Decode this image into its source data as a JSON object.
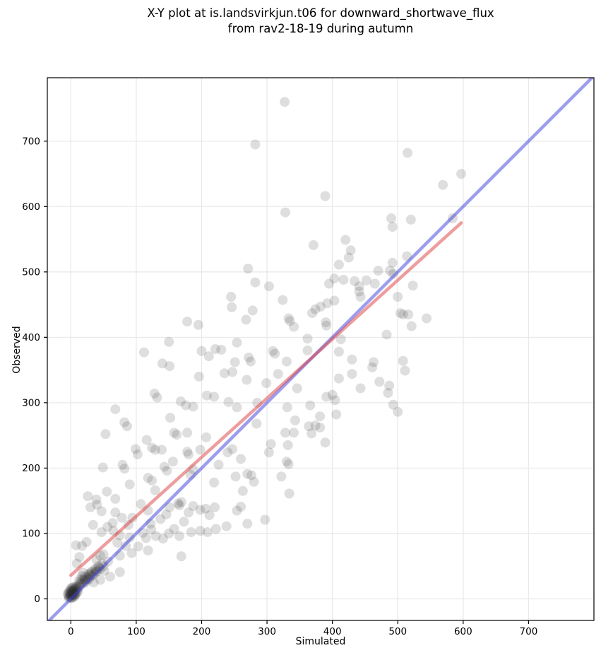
{
  "title": {
    "line1": "X-Y plot at is.landsvirkjun.t06 for downward_shortwave_flux",
    "line2": "from rav2-18-19 during autumn"
  },
  "chart_data": {
    "type": "scatter",
    "title": "X-Y plot at is.landsvirkjun.t06 for downward_shortwave_flux from rav2-18-19 during autumn",
    "xlabel": "Simulated",
    "ylabel": "Observed",
    "xlim": [
      -36,
      800
    ],
    "ylim": [
      -33,
      797
    ],
    "xticks": [
      0,
      100,
      200,
      300,
      400,
      500,
      600,
      700
    ],
    "yticks": [
      0,
      100,
      200,
      300,
      400,
      500,
      600,
      700
    ],
    "grid": true,
    "grid_color": "#e9e9e9",
    "marker": {
      "color": "#2a2a2a",
      "opacity": 0.155,
      "radius_px": 7
    },
    "lines": [
      {
        "name": "one-to-one-line",
        "color": "#3c3cdc",
        "opacity": 0.5,
        "width": 4.5,
        "x1": -33,
        "y1": -33,
        "x2": 797,
        "y2": 797
      },
      {
        "name": "regression-line",
        "color": "#dc3c3c",
        "opacity": 0.5,
        "width": 4.5,
        "x1": 0,
        "y1": 36,
        "x2": 597,
        "y2": 575
      }
    ],
    "points": [
      [
        327,
        760
      ],
      [
        282,
        695
      ],
      [
        515,
        682
      ],
      [
        597,
        650
      ],
      [
        569,
        633
      ],
      [
        389,
        616
      ],
      [
        328,
        591
      ],
      [
        584,
        582
      ],
      [
        490,
        582
      ],
      [
        520,
        580
      ],
      [
        492,
        569
      ],
      [
        420,
        549
      ],
      [
        371,
        541
      ],
      [
        428,
        533
      ],
      [
        425,
        522
      ],
      [
        514,
        524
      ],
      [
        410,
        511
      ],
      [
        492,
        514
      ],
      [
        271,
        505
      ],
      [
        488,
        502
      ],
      [
        493,
        497
      ],
      [
        470,
        502
      ],
      [
        282,
        484
      ],
      [
        452,
        487
      ],
      [
        465,
        482
      ],
      [
        403,
        490
      ],
      [
        417,
        488
      ],
      [
        395,
        482
      ],
      [
        434,
        486
      ],
      [
        441,
        478
      ],
      [
        523,
        479
      ],
      [
        303,
        478
      ],
      [
        324,
        457
      ],
      [
        374,
        443
      ],
      [
        382,
        447
      ],
      [
        392,
        452
      ],
      [
        403,
        456
      ],
      [
        443,
        462
      ],
      [
        441,
        470
      ],
      [
        500,
        462
      ],
      [
        504,
        437
      ],
      [
        516,
        435
      ],
      [
        508,
        435
      ],
      [
        544,
        429
      ],
      [
        521,
        417
      ],
      [
        483,
        404
      ],
      [
        413,
        397
      ],
      [
        362,
        398
      ],
      [
        362,
        380
      ],
      [
        333,
        429
      ],
      [
        335,
        425
      ],
      [
        341,
        416
      ],
      [
        390,
        423
      ],
      [
        391,
        418
      ],
      [
        369,
        437
      ],
      [
        309,
        379
      ],
      [
        312,
        375
      ],
      [
        330,
        363
      ],
      [
        410,
        378
      ],
      [
        430,
        366
      ],
      [
        463,
        362
      ],
      [
        461,
        354
      ],
      [
        508,
        364
      ],
      [
        511,
        349
      ],
      [
        430,
        344
      ],
      [
        410,
        337
      ],
      [
        472,
        332
      ],
      [
        443,
        322
      ],
      [
        487,
        326
      ],
      [
        485,
        315
      ],
      [
        317,
        344
      ],
      [
        299,
        330
      ],
      [
        346,
        322
      ],
      [
        391,
        309
      ],
      [
        400,
        312
      ],
      [
        404,
        304
      ],
      [
        331,
        293
      ],
      [
        343,
        273
      ],
      [
        366,
        296
      ],
      [
        381,
        279
      ],
      [
        406,
        282
      ],
      [
        493,
        297
      ],
      [
        500,
        286
      ],
      [
        328,
        254
      ],
      [
        341,
        254
      ],
      [
        364,
        264
      ],
      [
        374,
        265
      ],
      [
        368,
        253
      ],
      [
        381,
        262
      ],
      [
        306,
        237
      ],
      [
        303,
        224
      ],
      [
        332,
        235
      ],
      [
        389,
        239
      ],
      [
        330,
        210
      ],
      [
        333,
        206
      ],
      [
        322,
        187
      ],
      [
        334,
        161
      ],
      [
        297,
        121
      ],
      [
        178,
        424
      ],
      [
        195,
        419
      ],
      [
        245,
        462
      ],
      [
        246,
        446
      ],
      [
        278,
        441
      ],
      [
        268,
        427
      ],
      [
        112,
        377
      ],
      [
        150,
        393
      ],
      [
        200,
        379
      ],
      [
        211,
        371
      ],
      [
        221,
        382
      ],
      [
        230,
        381
      ],
      [
        254,
        392
      ],
      [
        251,
        362
      ],
      [
        272,
        369
      ],
      [
        275,
        363
      ],
      [
        140,
        360
      ],
      [
        151,
        356
      ],
      [
        235,
        345
      ],
      [
        247,
        347
      ],
      [
        196,
        340
      ],
      [
        269,
        335
      ],
      [
        128,
        314
      ],
      [
        132,
        308
      ],
      [
        168,
        302
      ],
      [
        176,
        296
      ],
      [
        187,
        294
      ],
      [
        208,
        311
      ],
      [
        219,
        309
      ],
      [
        241,
        301
      ],
      [
        254,
        293
      ],
      [
        284,
        268
      ],
      [
        285,
        300
      ],
      [
        68,
        290
      ],
      [
        82,
        270
      ],
      [
        86,
        264
      ],
      [
        53,
        252
      ],
      [
        152,
        277
      ],
      [
        158,
        254
      ],
      [
        162,
        251
      ],
      [
        178,
        254
      ],
      [
        207,
        247
      ],
      [
        116,
        243
      ],
      [
        99,
        229
      ],
      [
        102,
        221
      ],
      [
        124,
        231
      ],
      [
        129,
        228
      ],
      [
        139,
        228
      ],
      [
        178,
        225
      ],
      [
        180,
        221
      ],
      [
        198,
        228
      ],
      [
        240,
        224
      ],
      [
        247,
        229
      ],
      [
        260,
        214
      ],
      [
        270,
        191
      ],
      [
        156,
        210
      ],
      [
        143,
        202
      ],
      [
        147,
        196
      ],
      [
        187,
        198
      ],
      [
        183,
        190
      ],
      [
        49,
        201
      ],
      [
        79,
        205
      ],
      [
        82,
        199
      ],
      [
        118,
        185
      ],
      [
        124,
        181
      ],
      [
        90,
        175
      ],
      [
        55,
        164
      ],
      [
        26,
        157
      ],
      [
        39,
        152
      ],
      [
        68,
        153
      ],
      [
        129,
        166
      ],
      [
        219,
        178
      ],
      [
        226,
        205
      ],
      [
        252,
        187
      ],
      [
        263,
        165
      ],
      [
        276,
        189
      ],
      [
        280,
        179
      ],
      [
        30,
        140
      ],
      [
        40,
        144
      ],
      [
        47,
        134
      ],
      [
        34,
        113
      ],
      [
        56,
        110
      ],
      [
        65,
        104
      ],
      [
        24,
        87
      ],
      [
        17,
        81
      ],
      [
        9,
        54
      ],
      [
        13,
        64
      ],
      [
        8,
        82
      ],
      [
        47,
        102
      ],
      [
        50,
        68
      ],
      [
        45,
        66
      ],
      [
        39,
        60
      ],
      [
        64,
        116
      ],
      [
        68,
        132
      ],
      [
        78,
        124
      ],
      [
        94,
        124
      ],
      [
        88,
        113
      ],
      [
        75,
        97
      ],
      [
        90,
        94
      ],
      [
        71,
        86
      ],
      [
        84,
        81
      ],
      [
        103,
        80
      ],
      [
        115,
        93
      ],
      [
        110,
        101
      ],
      [
        123,
        106
      ],
      [
        122,
        115
      ],
      [
        118,
        135
      ],
      [
        107,
        145
      ],
      [
        137,
        122
      ],
      [
        146,
        129
      ],
      [
        151,
        140
      ],
      [
        164,
        146
      ],
      [
        169,
        148
      ],
      [
        166,
        143
      ],
      [
        180,
        132
      ],
      [
        187,
        142
      ],
      [
        198,
        136
      ],
      [
        206,
        138
      ],
      [
        212,
        128
      ],
      [
        220,
        140
      ],
      [
        173,
        118
      ],
      [
        158,
        107
      ],
      [
        150,
        100
      ],
      [
        141,
        92
      ],
      [
        130,
        96
      ],
      [
        166,
        96
      ],
      [
        184,
        102
      ],
      [
        198,
        104
      ],
      [
        209,
        102
      ],
      [
        222,
        107
      ],
      [
        238,
        111
      ],
      [
        254,
        135
      ],
      [
        260,
        141
      ],
      [
        270,
        115
      ],
      [
        169,
        65
      ],
      [
        118,
        74
      ],
      [
        93,
        70
      ],
      [
        75,
        66
      ],
      [
        57,
        57
      ],
      [
        75,
        41
      ],
      [
        60,
        34
      ],
      [
        51,
        43
      ],
      [
        45,
        29
      ],
      [
        35,
        25
      ],
      [
        28,
        37
      ],
      [
        21,
        30
      ],
      [
        38,
        41
      ],
      [
        -3,
        3
      ],
      [
        0,
        5
      ],
      [
        2,
        8
      ],
      [
        4,
        6
      ],
      [
        1,
        12
      ],
      [
        -2,
        9
      ],
      [
        3,
        14
      ],
      [
        6,
        10
      ],
      [
        5,
        3
      ],
      [
        0,
        16
      ],
      [
        8,
        8
      ],
      [
        7,
        15
      ],
      [
        -4,
        6
      ],
      [
        2,
        2
      ],
      [
        9,
        12
      ],
      [
        4,
        18
      ],
      [
        -1,
        13
      ],
      [
        6,
        5
      ],
      [
        10,
        15
      ],
      [
        3,
        10
      ],
      [
        1,
        6
      ],
      [
        -3,
        11
      ],
      [
        8,
        19
      ],
      [
        11,
        11
      ],
      [
        0,
        9
      ],
      [
        5,
        13
      ],
      [
        -5,
        8
      ],
      [
        2,
        17
      ],
      [
        7,
        7
      ],
      [
        1,
        1
      ],
      [
        -2,
        4
      ],
      [
        4,
        11
      ],
      [
        0,
        2
      ],
      [
        6,
        16
      ],
      [
        -1,
        7
      ],
      [
        3,
        5
      ],
      [
        9,
        18
      ],
      [
        2,
        12
      ],
      [
        5,
        9
      ],
      [
        -3,
        1
      ],
      [
        13,
        22
      ],
      [
        16,
        26
      ],
      [
        18,
        30
      ],
      [
        20,
        24
      ],
      [
        22,
        34
      ],
      [
        25,
        30
      ],
      [
        27,
        38
      ],
      [
        30,
        34
      ],
      [
        32,
        42
      ],
      [
        35,
        38
      ],
      [
        37,
        46
      ],
      [
        40,
        42
      ],
      [
        42,
        50
      ],
      [
        45,
        46
      ],
      [
        48,
        54
      ],
      [
        50,
        50
      ],
      [
        23,
        26
      ],
      [
        28,
        30
      ],
      [
        33,
        36
      ],
      [
        38,
        44
      ],
      [
        43,
        48
      ],
      [
        14,
        30
      ],
      [
        17,
        35
      ],
      [
        12,
        26
      ],
      [
        19,
        40
      ],
      [
        12,
        18
      ],
      [
        15,
        22
      ],
      [
        21,
        28
      ],
      [
        26,
        33
      ],
      [
        31,
        40
      ]
    ]
  }
}
